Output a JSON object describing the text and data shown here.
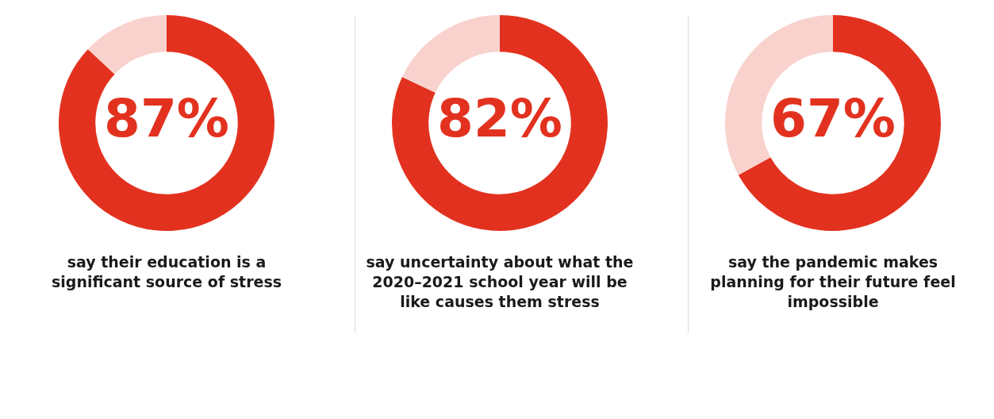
{
  "chart_data": [
    {
      "type": "donut",
      "categories": [
        null,
        null
      ],
      "values": [
        87,
        13
      ],
      "colors": [
        "#e2321f",
        "#f9d2cd"
      ],
      "value_labels": [
        "87%",
        null
      ],
      "subtitle": "say their education is a significant source of stress"
    },
    {
      "type": "donut",
      "categories": [
        null,
        null
      ],
      "values": [
        82,
        18
      ],
      "colors": [
        "#e2321f",
        "#f9d2cd"
      ],
      "value_labels": [
        "82%",
        null
      ],
      "subtitle": "say uncertainty about what the 2020–2021 school year will be like causes them stress"
    },
    {
      "type": "donut",
      "categories": [
        null,
        null
      ],
      "values": [
        67,
        33
      ],
      "colors": [
        "#e2321f",
        "#f9d2cd"
      ],
      "value_labels": [
        "67%",
        null
      ],
      "subtitle": "say the pandemic makes planning for their future feel impossible"
    }
  ]
}
